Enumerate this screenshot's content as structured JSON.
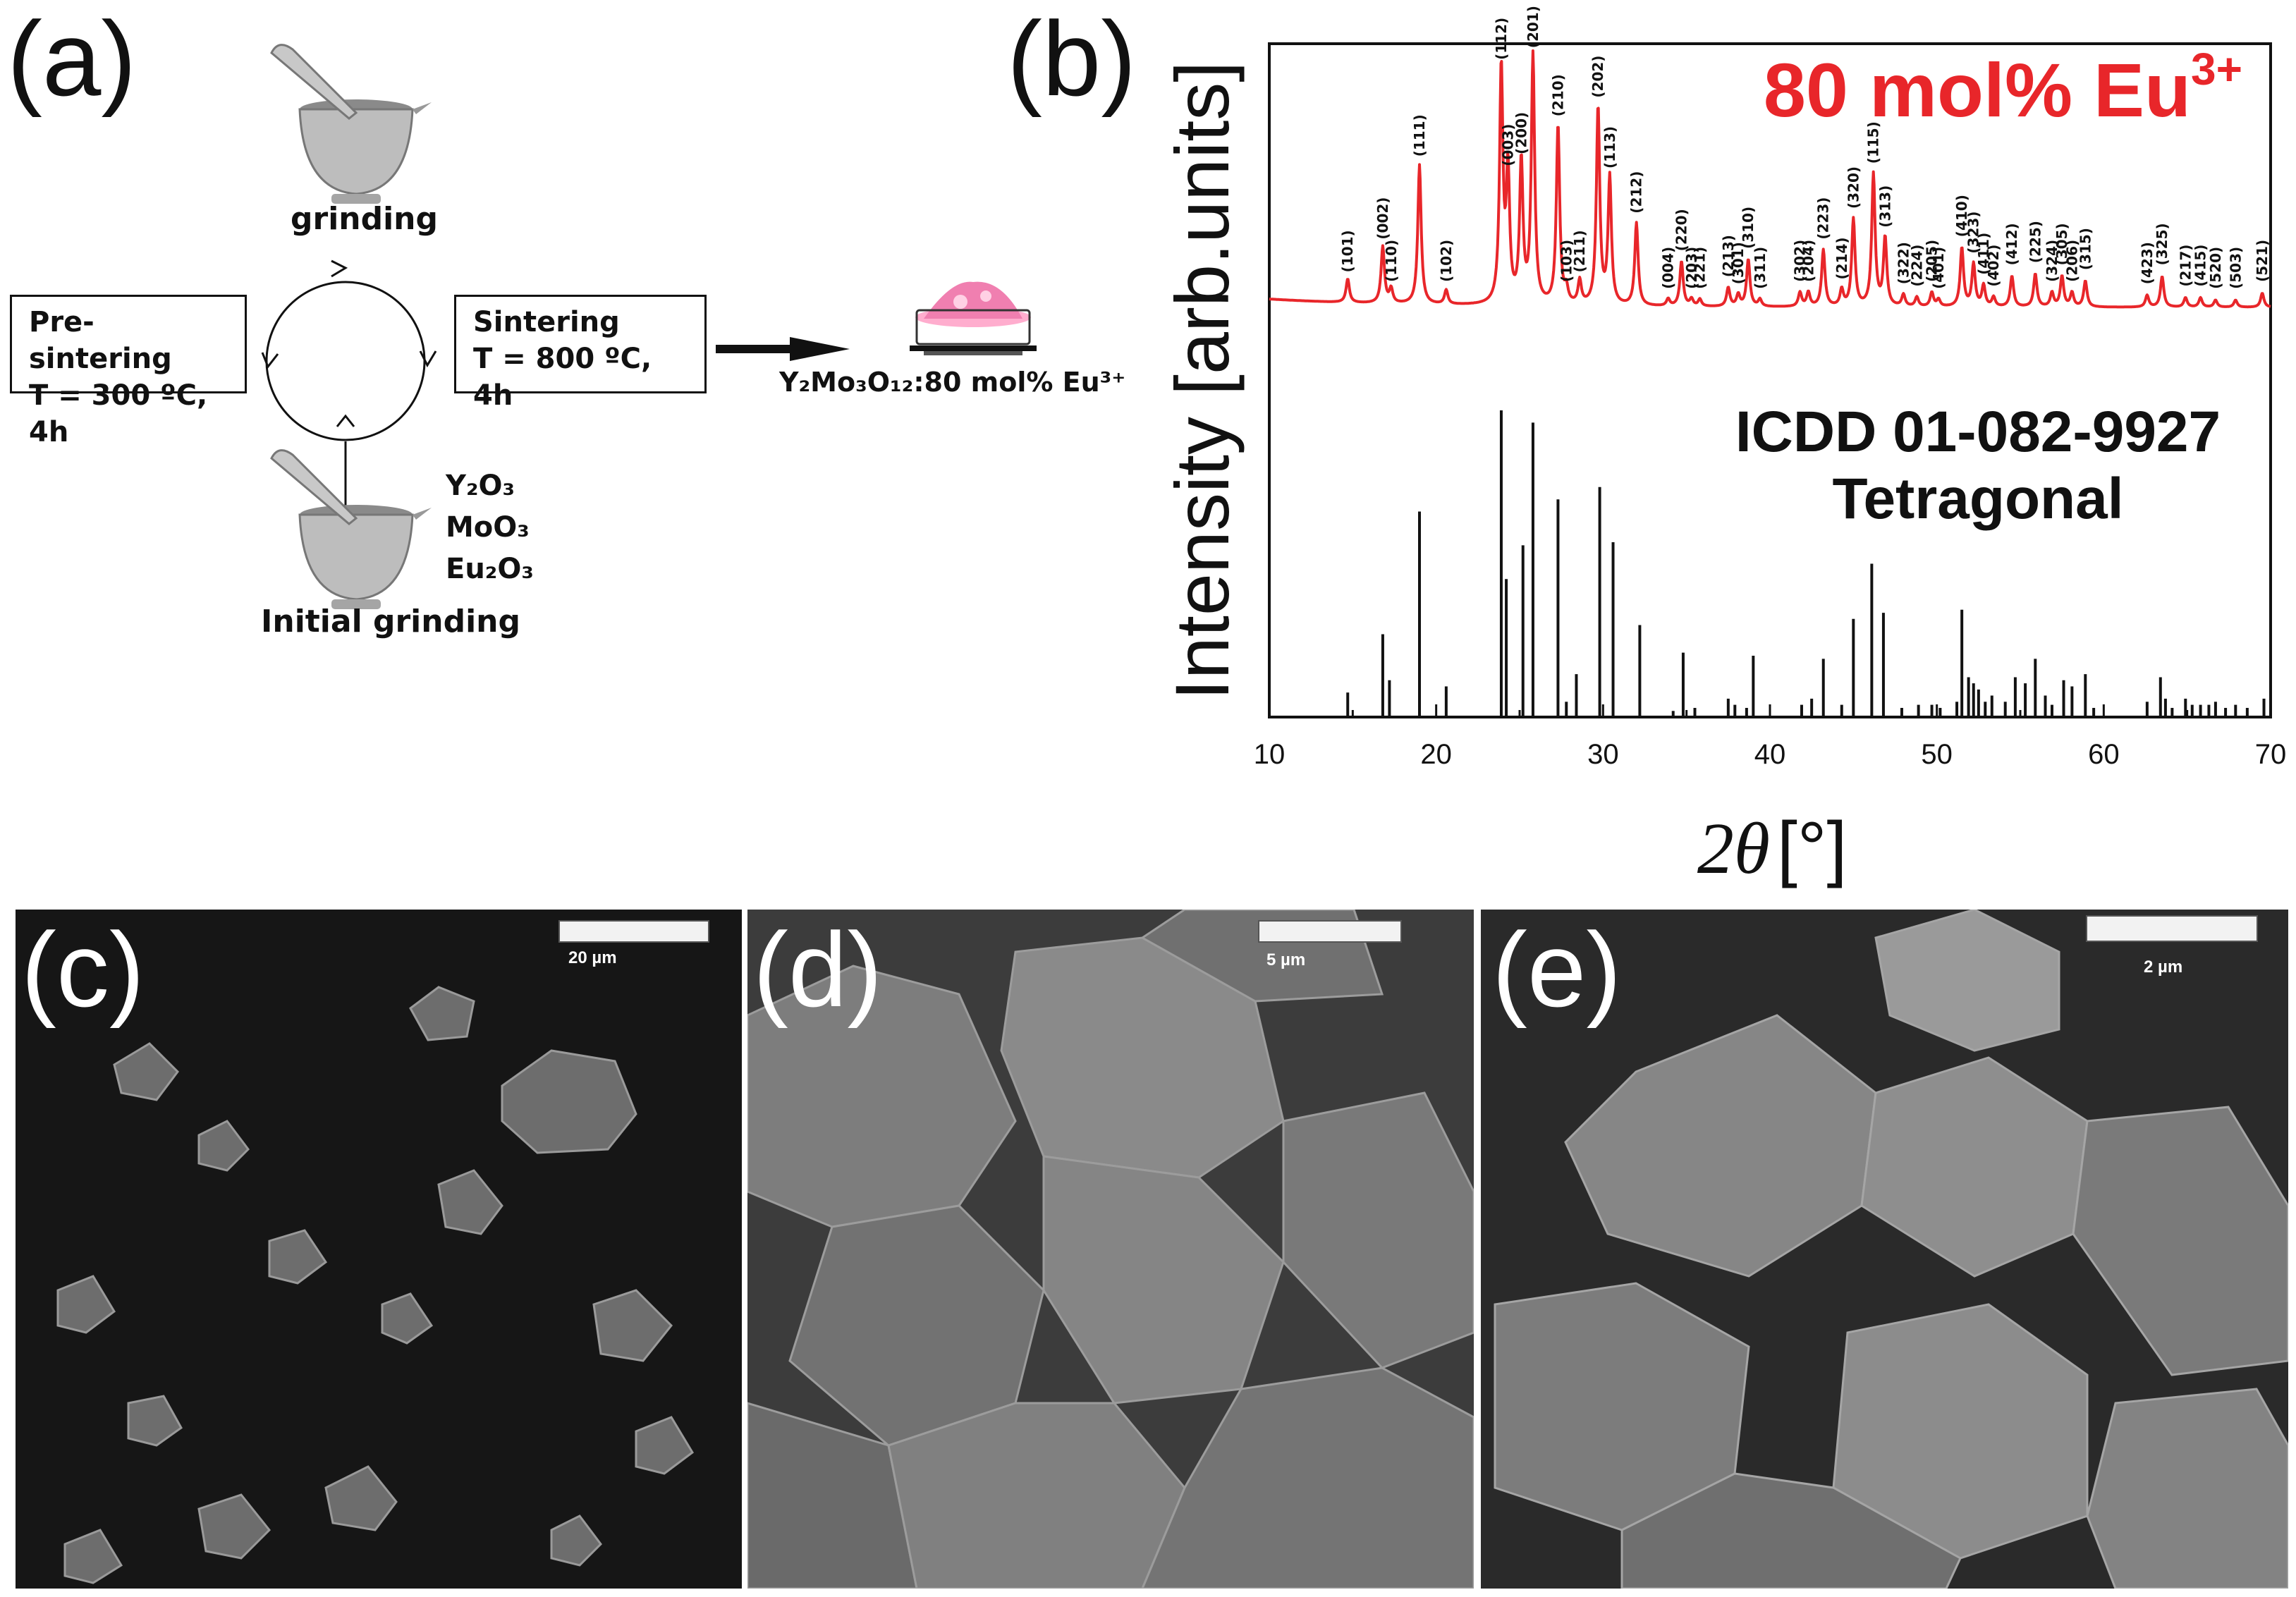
{
  "panels": {
    "a": "(a)",
    "b": "(b)",
    "c": "(c)",
    "d": "(d)",
    "e": "(e)"
  },
  "synthesis": {
    "grinding": "grinding",
    "pre_sintering_title": "Pre-sintering",
    "pre_sintering_cond": "T = 300 ºC, 4h",
    "sintering_title": "Sintering",
    "sintering_cond": "T = 800 ºC, 4h",
    "reagents": [
      "Y₂O₃",
      "MoO₃",
      "Eu₂O₃"
    ],
    "initial_grinding": "Initial grinding",
    "product": "Y₂Mo₃O₁₂:80 mol% Eu³⁺"
  },
  "chart_data": {
    "type": "line",
    "ylabel": "Intensity [arb.units]",
    "xlabel_symbol": "2θ",
    "xlabel_unit": "[°]",
    "xlim": [
      10,
      70
    ],
    "xticks": [
      10,
      20,
      30,
      40,
      50,
      60,
      70
    ],
    "series": [
      {
        "name": "80 mol% Eu3+",
        "label_main": "80 mol% Eu",
        "label_sup": "3+",
        "color": "#e8262a",
        "peaks": [
          {
            "x": 14.7,
            "y": 0.1,
            "hkl": "(101)"
          },
          {
            "x": 16.8,
            "y": 0.24,
            "hkl": "(002)"
          },
          {
            "x": 17.3,
            "y": 0.06,
            "hkl": "(110)"
          },
          {
            "x": 19.0,
            "y": 0.59,
            "hkl": "(111)"
          },
          {
            "x": 20.6,
            "y": 0.06,
            "hkl": "(102)"
          },
          {
            "x": 23.9,
            "y": 1.0,
            "hkl": "(112)"
          },
          {
            "x": 24.3,
            "y": 0.55,
            "hkl": "(003)"
          },
          {
            "x": 25.1,
            "y": 0.6,
            "hkl": "(200)"
          },
          {
            "x": 25.8,
            "y": 1.05,
            "hkl": "(201)"
          },
          {
            "x": 27.3,
            "y": 0.76,
            "hkl": "(210)"
          },
          {
            "x": 27.8,
            "y": 0.06,
            "hkl": "(103)"
          },
          {
            "x": 28.6,
            "y": 0.1,
            "hkl": "(211)"
          },
          {
            "x": 29.7,
            "y": 0.84,
            "hkl": "(202)"
          },
          {
            "x": 30.4,
            "y": 0.54,
            "hkl": "(113)"
          },
          {
            "x": 32.0,
            "y": 0.35,
            "hkl": "(212)"
          },
          {
            "x": 33.9,
            "y": 0.03,
            "hkl": "(004)"
          },
          {
            "x": 34.7,
            "y": 0.19,
            "hkl": "(220)"
          },
          {
            "x": 35.3,
            "y": 0.03,
            "hkl": "(203)"
          },
          {
            "x": 35.8,
            "y": 0.03,
            "hkl": "(221)"
          },
          {
            "x": 37.5,
            "y": 0.08,
            "hkl": "(213)"
          },
          {
            "x": 38.1,
            "y": 0.05,
            "hkl": "(301)"
          },
          {
            "x": 38.7,
            "y": 0.2,
            "hkl": "(310)"
          },
          {
            "x": 39.4,
            "y": 0.03,
            "hkl": "(311)"
          },
          {
            "x": 41.8,
            "y": 0.06,
            "hkl": "(302)"
          },
          {
            "x": 42.3,
            "y": 0.06,
            "hkl": "(204)"
          },
          {
            "x": 43.2,
            "y": 0.24,
            "hkl": "(223)"
          },
          {
            "x": 44.3,
            "y": 0.07,
            "hkl": "(214)"
          },
          {
            "x": 45.0,
            "y": 0.37,
            "hkl": "(320)"
          },
          {
            "x": 46.2,
            "y": 0.56,
            "hkl": "(115)"
          },
          {
            "x": 46.9,
            "y": 0.29,
            "hkl": "(313)"
          },
          {
            "x": 48.0,
            "y": 0.05,
            "hkl": "(322)"
          },
          {
            "x": 48.8,
            "y": 0.04,
            "hkl": "(224)"
          },
          {
            "x": 49.7,
            "y": 0.06,
            "hkl": "(205)"
          },
          {
            "x": 50.1,
            "y": 0.03,
            "hkl": "(401)"
          },
          {
            "x": 51.5,
            "y": 0.25,
            "hkl": "(410)"
          },
          {
            "x": 52.2,
            "y": 0.18,
            "hkl": "(323)"
          },
          {
            "x": 52.8,
            "y": 0.09,
            "hkl": "(411)"
          },
          {
            "x": 53.4,
            "y": 0.04,
            "hkl": "(402)"
          },
          {
            "x": 54.5,
            "y": 0.13,
            "hkl": "(412)"
          },
          {
            "x": 55.9,
            "y": 0.14,
            "hkl": "(225)"
          },
          {
            "x": 56.9,
            "y": 0.06,
            "hkl": "(324)"
          },
          {
            "x": 57.5,
            "y": 0.13,
            "hkl": "(305)"
          },
          {
            "x": 58.1,
            "y": 0.06,
            "hkl": "(206)"
          },
          {
            "x": 58.9,
            "y": 0.11,
            "hkl": "(315)"
          },
          {
            "x": 62.6,
            "y": 0.05,
            "hkl": "(423)"
          },
          {
            "x": 63.5,
            "y": 0.13,
            "hkl": "(325)"
          },
          {
            "x": 64.9,
            "y": 0.04,
            "hkl": "(217)"
          },
          {
            "x": 65.8,
            "y": 0.04,
            "hkl": "(415)"
          },
          {
            "x": 66.7,
            "y": 0.03,
            "hkl": "(520)"
          },
          {
            "x": 67.9,
            "y": 0.03,
            "hkl": "(503)"
          },
          {
            "x": 69.5,
            "y": 0.06,
            "hkl": "(521)"
          }
        ]
      },
      {
        "name": "ICDD 01-082-9927 Tetragonal",
        "label_line1": "ICDD 01-082-9927",
        "label_line2": "Tetragonal",
        "color": "#111111",
        "peaks": [
          [
            14.7,
            0.08
          ],
          [
            16.8,
            0.27
          ],
          [
            17.2,
            0.12
          ],
          [
            19.0,
            0.67
          ],
          [
            20.6,
            0.1
          ],
          [
            23.9,
            1.0
          ],
          [
            24.2,
            0.45
          ],
          [
            25.2,
            0.56
          ],
          [
            25.8,
            0.96
          ],
          [
            27.3,
            0.71
          ],
          [
            27.8,
            0.05
          ],
          [
            28.4,
            0.14
          ],
          [
            29.8,
            0.75
          ],
          [
            30.6,
            0.57
          ],
          [
            32.2,
            0.3
          ],
          [
            34.2,
            0.02
          ],
          [
            34.8,
            0.21
          ],
          [
            35.5,
            0.03
          ],
          [
            37.5,
            0.06
          ],
          [
            37.9,
            0.04
          ],
          [
            38.6,
            0.03
          ],
          [
            39.0,
            0.2
          ],
          [
            41.9,
            0.04
          ],
          [
            42.5,
            0.06
          ],
          [
            43.2,
            0.19
          ],
          [
            44.3,
            0.04
          ],
          [
            45.0,
            0.32
          ],
          [
            46.1,
            0.5
          ],
          [
            46.8,
            0.34
          ],
          [
            47.9,
            0.03
          ],
          [
            48.9,
            0.04
          ],
          [
            49.7,
            0.04
          ],
          [
            50.2,
            0.03
          ],
          [
            51.2,
            0.05
          ],
          [
            51.5,
            0.35
          ],
          [
            51.9,
            0.13
          ],
          [
            52.2,
            0.11
          ],
          [
            52.5,
            0.09
          ],
          [
            52.9,
            0.05
          ],
          [
            53.3,
            0.07
          ],
          [
            54.1,
            0.05
          ],
          [
            54.7,
            0.13
          ],
          [
            55.3,
            0.11
          ],
          [
            55.9,
            0.19
          ],
          [
            56.5,
            0.07
          ],
          [
            56.9,
            0.04
          ],
          [
            57.6,
            0.12
          ],
          [
            58.1,
            0.1
          ],
          [
            58.9,
            0.14
          ],
          [
            59.4,
            0.03
          ],
          [
            62.6,
            0.05
          ],
          [
            63.4,
            0.13
          ],
          [
            63.7,
            0.06
          ],
          [
            64.1,
            0.03
          ],
          [
            64.9,
            0.06
          ],
          [
            65.3,
            0.04
          ],
          [
            65.8,
            0.04
          ],
          [
            66.3,
            0.04
          ],
          [
            66.7,
            0.05
          ],
          [
            67.3,
            0.03
          ],
          [
            67.9,
            0.04
          ],
          [
            68.6,
            0.03
          ],
          [
            69.6,
            0.06
          ]
        ]
      }
    ]
  },
  "sem": {
    "c": {
      "scale": "20 µm"
    },
    "d": {
      "scale": "5 µm"
    },
    "e": {
      "scale": "2 µm"
    }
  }
}
